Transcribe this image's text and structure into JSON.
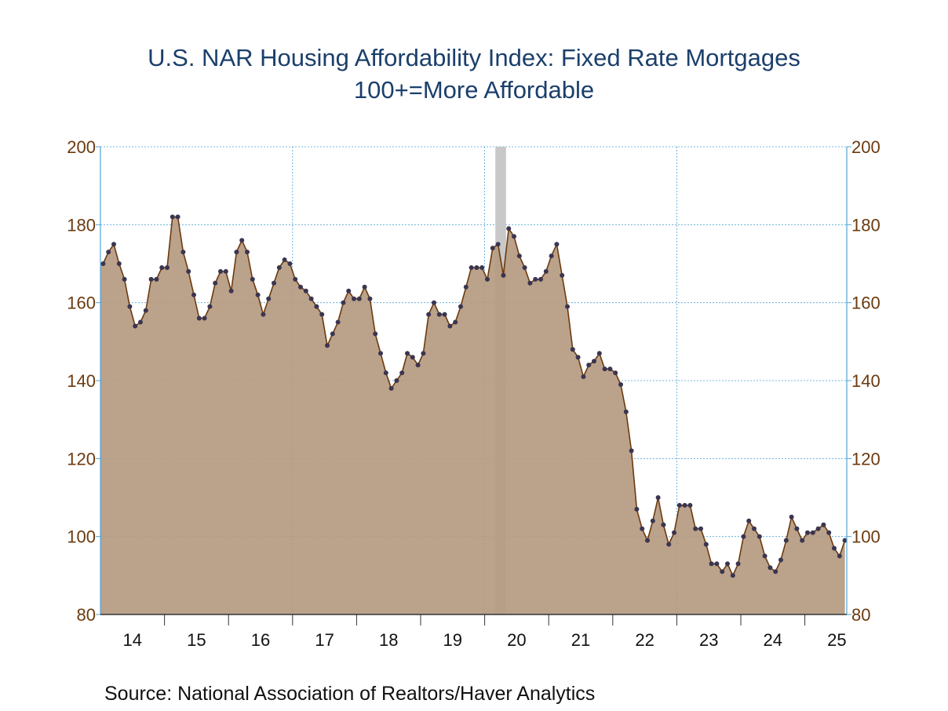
{
  "title": "U.S. NAR Housing Affordability Index: Fixed Rate Mortgages",
  "subtitle": "100+=More Affordable",
  "source": "Source:  National Association of Realtors/Haver Analytics",
  "colors": {
    "title": "#1b3f6b",
    "area_fill": "#b59a80",
    "line": "#6b3a0e",
    "marker": "#3a3550",
    "grid": "#4fa3d6",
    "recession": "#c8c8c8",
    "axis_label": "#6b3a0e"
  },
  "chart_data": {
    "type": "area",
    "ylim": [
      80,
      200
    ],
    "y_ticks": [
      80,
      100,
      120,
      140,
      160,
      180,
      200
    ],
    "y_tick_labels": [
      "80",
      "100",
      "120",
      "140",
      "160",
      "180",
      "200"
    ],
    "x_tick_labels": [
      "14",
      "15",
      "16",
      "17",
      "18",
      "19",
      "20",
      "21",
      "22",
      "23",
      "24",
      "25"
    ],
    "x_start_month": "2014-01",
    "recession": {
      "start": "2020-03",
      "end": "2020-04"
    },
    "grid": true,
    "markers": true,
    "series": [
      {
        "values": [
          170,
          173,
          175,
          170,
          166,
          159,
          154,
          155,
          158,
          166,
          166,
          169,
          169,
          182,
          182,
          173,
          168,
          162,
          156,
          156,
          159,
          165,
          168,
          168,
          163,
          173,
          176,
          173,
          166,
          162,
          157,
          161,
          165,
          169,
          171,
          170,
          166,
          164,
          163,
          161,
          159,
          157,
          149,
          152,
          155,
          160,
          163,
          161,
          161,
          164,
          161,
          152,
          147,
          142,
          138,
          140,
          142,
          147,
          146,
          144,
          147,
          157,
          160,
          157,
          157,
          154,
          155,
          159,
          164,
          169,
          169,
          169,
          166,
          174,
          175,
          167,
          179,
          177,
          172,
          169,
          165,
          166,
          166,
          168,
          172,
          175,
          167,
          159,
          148,
          146,
          141,
          144,
          145,
          147,
          143,
          143,
          142,
          139,
          132,
          122,
          107,
          102,
          99,
          104,
          110,
          103,
          98,
          101,
          108,
          108,
          108,
          102,
          102,
          98,
          93,
          93,
          91,
          93,
          90,
          93,
          100,
          104,
          102,
          100,
          95,
          92,
          91,
          94,
          99,
          105,
          102,
          99,
          101,
          101,
          102,
          103,
          101,
          97,
          95,
          99
        ]
      }
    ]
  }
}
